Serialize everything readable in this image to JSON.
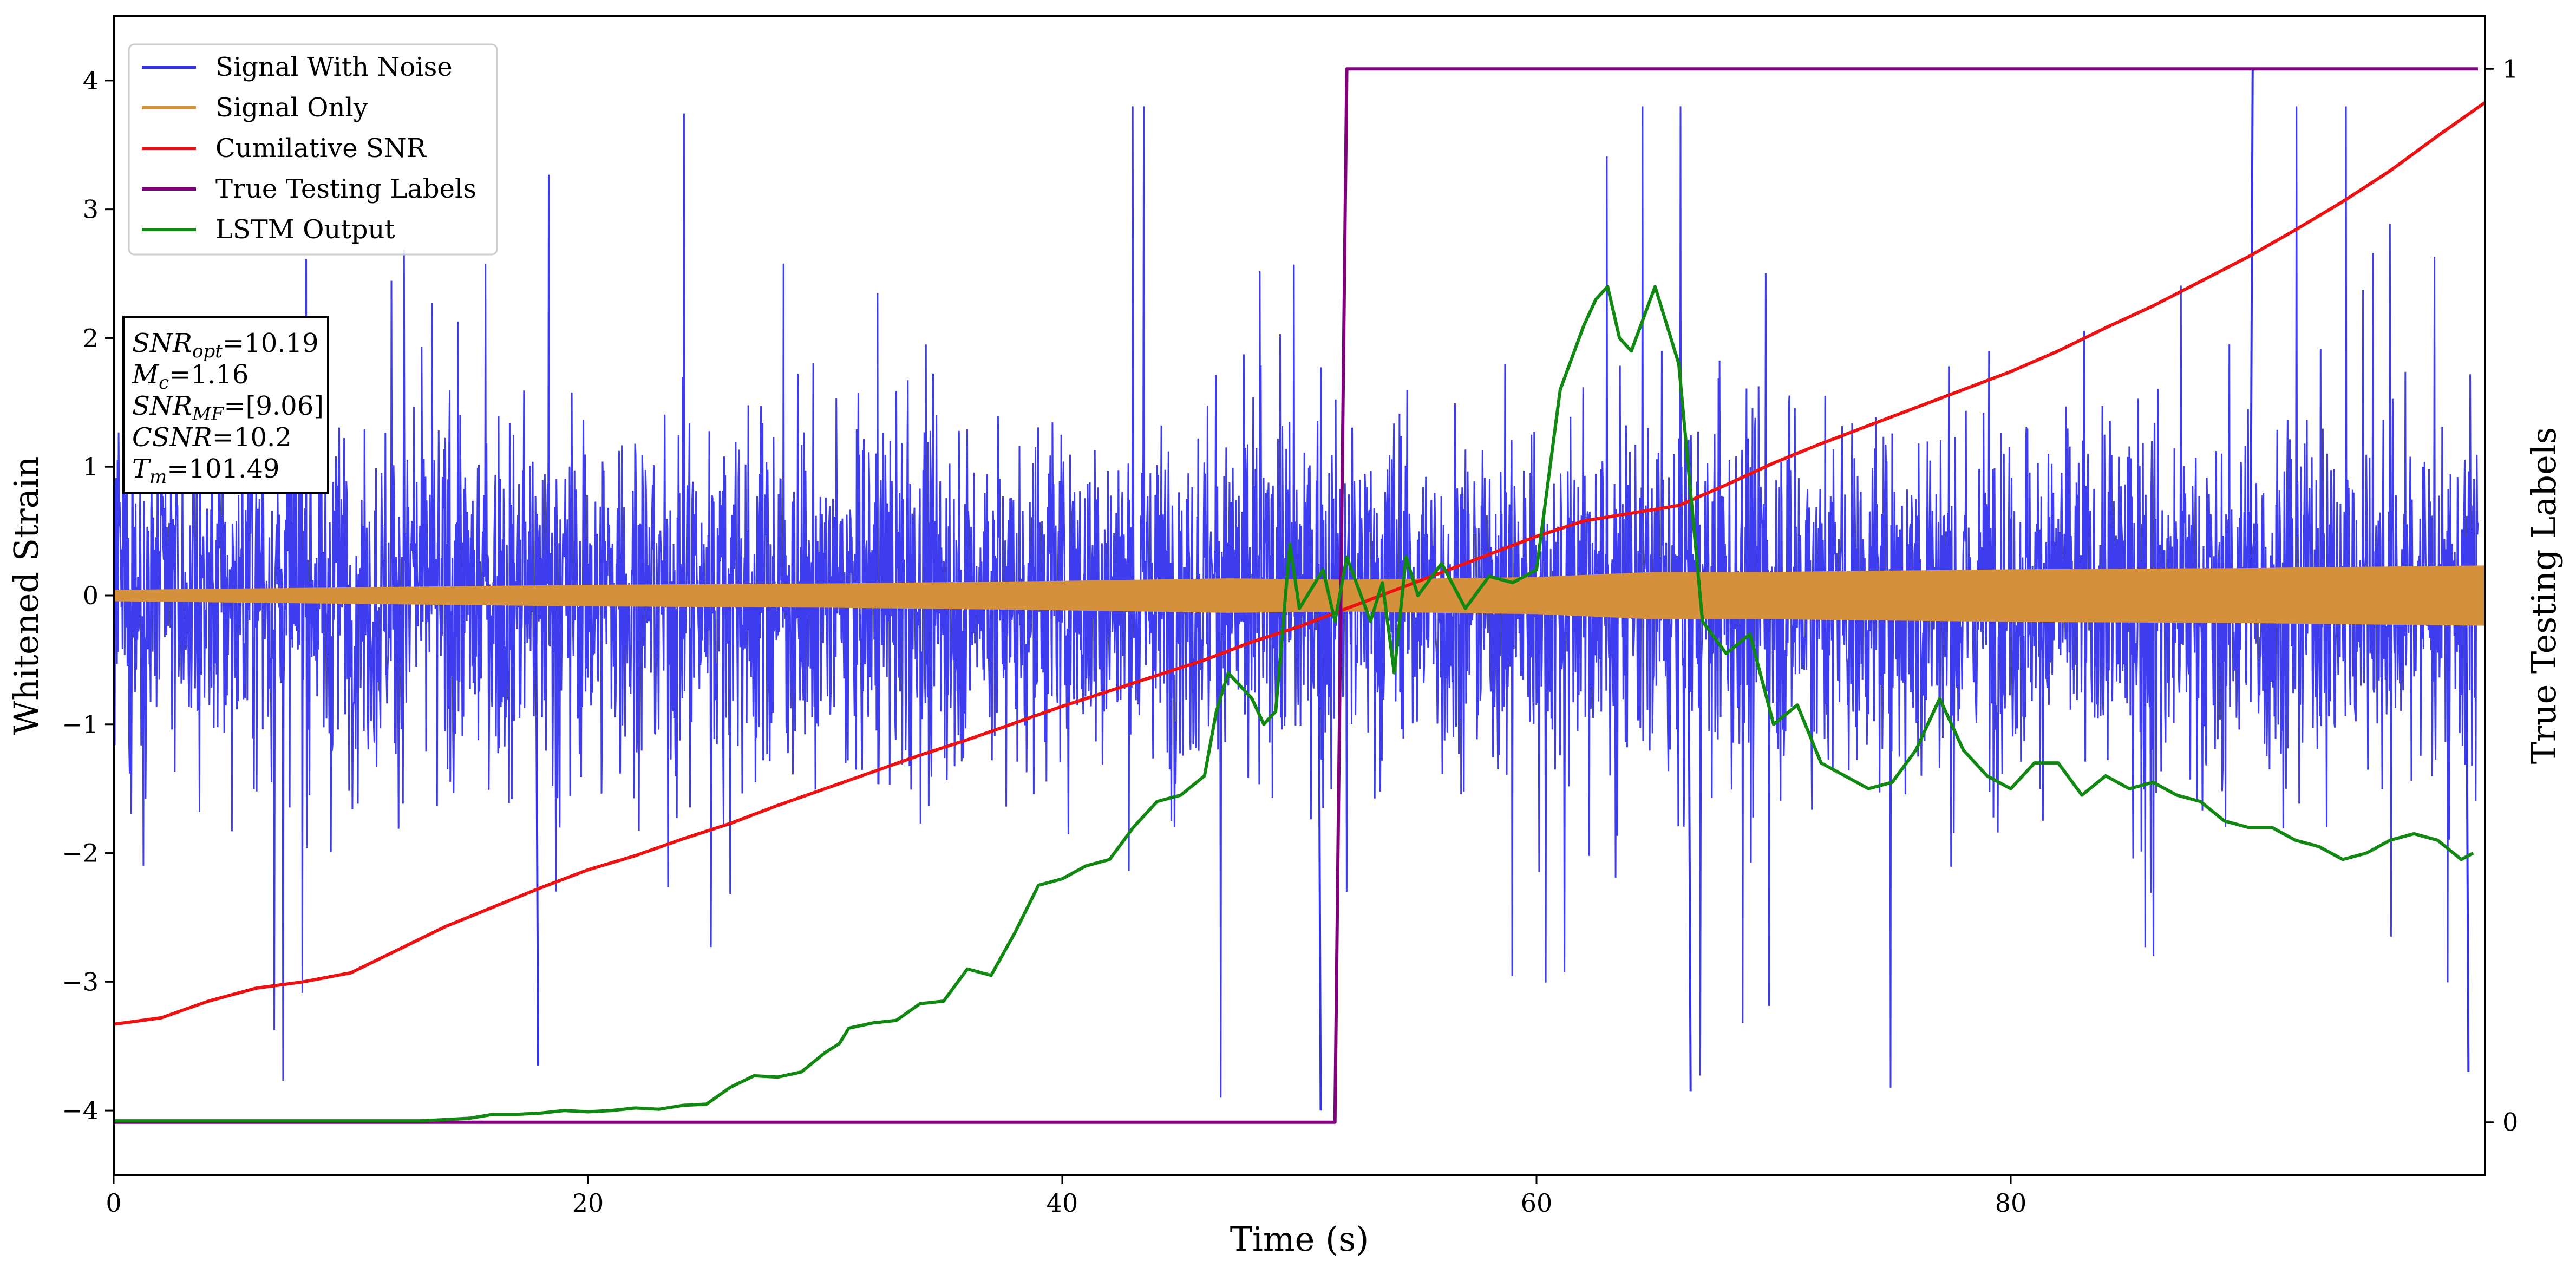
{
  "chart_data": {
    "type": "line",
    "title": "",
    "xlabel": "Time (s)",
    "ylabel": "Whitened Strain",
    "ylabel_right": "True Testing Labels",
    "xlim": [
      0,
      100
    ],
    "ylim": [
      -4.5,
      4.5
    ],
    "ylim_right": [
      -0.05,
      1.05
    ],
    "x_ticks": [
      0,
      20,
      40,
      60,
      80
    ],
    "y_ticks": [
      -4,
      -3,
      -2,
      -1,
      0,
      1,
      2,
      3,
      4
    ],
    "y_ticks_right": [
      0,
      1
    ],
    "grid": false,
    "legend_position": "top-left",
    "series": [
      {
        "name": "Signal With Noise",
        "color": "#3333ee",
        "axis": "left",
        "kind": "noise-band",
        "base_amplitude": 0.9,
        "peak_abs": 4.1,
        "notable_spikes": [
          {
            "x": 90.2,
            "y": 4.1
          },
          {
            "x": 50.9,
            "y": -4.0
          },
          {
            "x": 66.5,
            "y": -3.85
          },
          {
            "x": 17.9,
            "y": -3.65
          },
          {
            "x": 99.3,
            "y": -3.7
          }
        ]
      },
      {
        "name": "Signal Only",
        "color": "#d4903a",
        "axis": "left",
        "kind": "envelope",
        "envelope": [
          [
            0,
            0.04
          ],
          [
            10,
            0.06
          ],
          [
            20,
            0.08
          ],
          [
            30,
            0.09
          ],
          [
            40,
            0.11
          ],
          [
            47,
            0.13
          ],
          [
            52,
            0.12
          ],
          [
            60,
            0.14
          ],
          [
            65,
            0.18
          ],
          [
            70,
            0.18
          ],
          [
            80,
            0.2
          ],
          [
            90,
            0.21
          ],
          [
            100,
            0.23
          ]
        ]
      },
      {
        "name": "Cumilative SNR",
        "color": "#ee1111",
        "axis": "left",
        "points": [
          [
            0,
            -3.33
          ],
          [
            2,
            -3.28
          ],
          [
            4,
            -3.15
          ],
          [
            6,
            -3.05
          ],
          [
            8,
            -3.0
          ],
          [
            10,
            -2.93
          ],
          [
            12,
            -2.75
          ],
          [
            14,
            -2.57
          ],
          [
            16,
            -2.42
          ],
          [
            18,
            -2.27
          ],
          [
            20,
            -2.13
          ],
          [
            22,
            -2.02
          ],
          [
            24,
            -1.89
          ],
          [
            26,
            -1.77
          ],
          [
            28,
            -1.63
          ],
          [
            30,
            -1.5
          ],
          [
            32,
            -1.37
          ],
          [
            34,
            -1.24
          ],
          [
            36,
            -1.12
          ],
          [
            38,
            -0.99
          ],
          [
            40,
            -0.86
          ],
          [
            42,
            -0.74
          ],
          [
            44,
            -0.62
          ],
          [
            46,
            -0.5
          ],
          [
            48,
            -0.36
          ],
          [
            50,
            -0.24
          ],
          [
            52,
            -0.1
          ],
          [
            54,
            0.04
          ],
          [
            56,
            0.18
          ],
          [
            58,
            0.32
          ],
          [
            60,
            0.46
          ],
          [
            62,
            0.58
          ],
          [
            64,
            0.64
          ],
          [
            66,
            0.7
          ],
          [
            68,
            0.86
          ],
          [
            70,
            1.03
          ],
          [
            72,
            1.18
          ],
          [
            74,
            1.32
          ],
          [
            76,
            1.46
          ],
          [
            78,
            1.6
          ],
          [
            80,
            1.74
          ],
          [
            82,
            1.9
          ],
          [
            84,
            2.08
          ],
          [
            86,
            2.25
          ],
          [
            88,
            2.44
          ],
          [
            90,
            2.63
          ],
          [
            92,
            2.84
          ],
          [
            94,
            3.06
          ],
          [
            96,
            3.3
          ],
          [
            98,
            3.57
          ],
          [
            100,
            3.83
          ]
        ]
      },
      {
        "name": "True Testing Labels",
        "color": "#800080",
        "axis": "right",
        "points": [
          [
            0,
            0
          ],
          [
            51.5,
            0
          ],
          [
            52.0,
            1
          ],
          [
            99.7,
            1
          ]
        ]
      },
      {
        "name": "LSTM Output",
        "color": "#118811",
        "axis": "left",
        "points": [
          [
            0,
            -4.08
          ],
          [
            13,
            -4.08
          ],
          [
            14,
            -4.07
          ],
          [
            15,
            -4.06
          ],
          [
            16,
            -4.03
          ],
          [
            17,
            -4.03
          ],
          [
            18,
            -4.02
          ],
          [
            19,
            -4.0
          ],
          [
            20,
            -4.01
          ],
          [
            21,
            -4.0
          ],
          [
            22,
            -3.98
          ],
          [
            23,
            -3.99
          ],
          [
            24,
            -3.96
          ],
          [
            25,
            -3.95
          ],
          [
            26,
            -3.82
          ],
          [
            27,
            -3.73
          ],
          [
            28,
            -3.74
          ],
          [
            29,
            -3.7
          ],
          [
            30,
            -3.55
          ],
          [
            30.6,
            -3.48
          ],
          [
            31,
            -3.36
          ],
          [
            32,
            -3.32
          ],
          [
            33,
            -3.3
          ],
          [
            34,
            -3.17
          ],
          [
            35,
            -3.15
          ],
          [
            36,
            -2.9
          ],
          [
            37,
            -2.95
          ],
          [
            38,
            -2.62
          ],
          [
            39,
            -2.25
          ],
          [
            40,
            -2.2
          ],
          [
            41,
            -2.1
          ],
          [
            42,
            -2.05
          ],
          [
            43,
            -1.8
          ],
          [
            44,
            -1.6
          ],
          [
            45,
            -1.55
          ],
          [
            46,
            -1.4
          ],
          [
            46.5,
            -0.9
          ],
          [
            47,
            -0.6
          ],
          [
            48,
            -0.8
          ],
          [
            48.5,
            -1.0
          ],
          [
            49,
            -0.9
          ],
          [
            49.6,
            0.4
          ],
          [
            50,
            -0.1
          ],
          [
            51,
            0.2
          ],
          [
            51.5,
            -0.2
          ],
          [
            52,
            0.3
          ],
          [
            53,
            -0.2
          ],
          [
            53.5,
            0.1
          ],
          [
            54,
            -0.6
          ],
          [
            54.5,
            0.3
          ],
          [
            55,
            0.0
          ],
          [
            56,
            0.25
          ],
          [
            57,
            -0.1
          ],
          [
            58,
            0.15
          ],
          [
            59,
            0.1
          ],
          [
            60,
            0.2
          ],
          [
            61,
            1.6
          ],
          [
            62,
            2.1
          ],
          [
            62.5,
            2.3
          ],
          [
            63,
            2.4
          ],
          [
            63.5,
            2.0
          ],
          [
            64,
            1.9
          ],
          [
            65,
            2.4
          ],
          [
            66,
            1.8
          ],
          [
            67,
            -0.2
          ],
          [
            68,
            -0.45
          ],
          [
            69,
            -0.3
          ],
          [
            70,
            -1.0
          ],
          [
            71,
            -0.85
          ],
          [
            72,
            -1.3
          ],
          [
            73,
            -1.4
          ],
          [
            74,
            -1.5
          ],
          [
            75,
            -1.45
          ],
          [
            76,
            -1.2
          ],
          [
            77,
            -0.8
          ],
          [
            78,
            -1.2
          ],
          [
            79,
            -1.4
          ],
          [
            80,
            -1.5
          ],
          [
            81,
            -1.3
          ],
          [
            82,
            -1.3
          ],
          [
            83,
            -1.55
          ],
          [
            84,
            -1.4
          ],
          [
            85,
            -1.5
          ],
          [
            86,
            -1.45
          ],
          [
            87,
            -1.55
          ],
          [
            88,
            -1.6
          ],
          [
            89,
            -1.75
          ],
          [
            90,
            -1.8
          ],
          [
            91,
            -1.8
          ],
          [
            92,
            -1.9
          ],
          [
            93,
            -1.95
          ],
          [
            94,
            -2.05
          ],
          [
            95,
            -2.0
          ],
          [
            96,
            -1.9
          ],
          [
            97,
            -1.85
          ],
          [
            98,
            -1.9
          ],
          [
            99,
            -2.05
          ],
          [
            99.5,
            -2.0
          ]
        ]
      }
    ],
    "annotation_box": {
      "lines": [
        {
          "base": "SNR",
          "sub": "opt",
          "rest": "=10.19"
        },
        {
          "base": "M",
          "sub": "c",
          "rest": "=1.16"
        },
        {
          "base": "SNR",
          "sub": "MF",
          "rest": "=[9.06]"
        },
        {
          "base": "CSNR",
          "sub": "",
          "rest": "=10.2"
        },
        {
          "base": "T",
          "sub": "m",
          "rest": "=101.49"
        }
      ]
    }
  }
}
